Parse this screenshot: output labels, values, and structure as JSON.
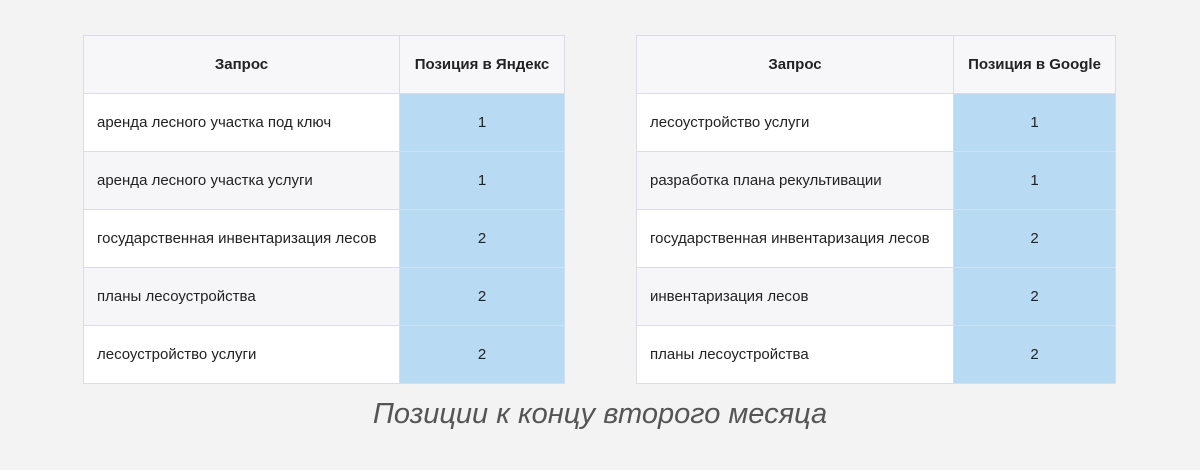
{
  "tables": [
    {
      "header": [
        "Запрос",
        "Позиция в Яндекс"
      ],
      "rows": [
        [
          "аренда лесного участка под ключ",
          1
        ],
        [
          "аренда лесного участка услуги",
          1
        ],
        [
          "государственная инвентаризация лесов",
          2
        ],
        [
          "планы лесоустройства",
          2
        ],
        [
          "лесоустройство услуги",
          2
        ]
      ]
    },
    {
      "header": [
        "Запрос",
        "Позиция в Google"
      ],
      "rows": [
        [
          "лесоустройство услуги",
          1
        ],
        [
          "разработка плана рекультивации",
          1
        ],
        [
          "государственная инвентаризация лесов",
          2
        ],
        [
          "инвентаризация лесов",
          2
        ],
        [
          "планы лесоустройства",
          2
        ]
      ]
    }
  ],
  "caption": "Позиции к концу второго месяца"
}
